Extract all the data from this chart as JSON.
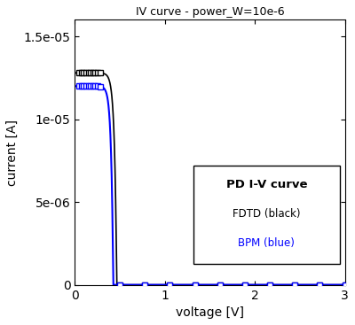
{
  "title": "IV curve - power_W=10e-6",
  "xlabel": "voltage [V]",
  "ylabel": "current [A]",
  "xlim": [
    0,
    3
  ],
  "ylim": [
    0,
    1.6e-05
  ],
  "yticks": [
    0,
    5e-06,
    1e-05,
    1.5e-05
  ],
  "xticks": [
    0,
    1,
    2,
    3
  ],
  "fdtd_color": "#000000",
  "bpm_color": "#0000ff",
  "legend_title": "PD I-V curve",
  "legend_line1": "FDTD (black)",
  "legend_line2": "BPM (blue)",
  "fdtd_saturation": 1.28e-05,
  "bpm_saturation": 1.2e-05
}
